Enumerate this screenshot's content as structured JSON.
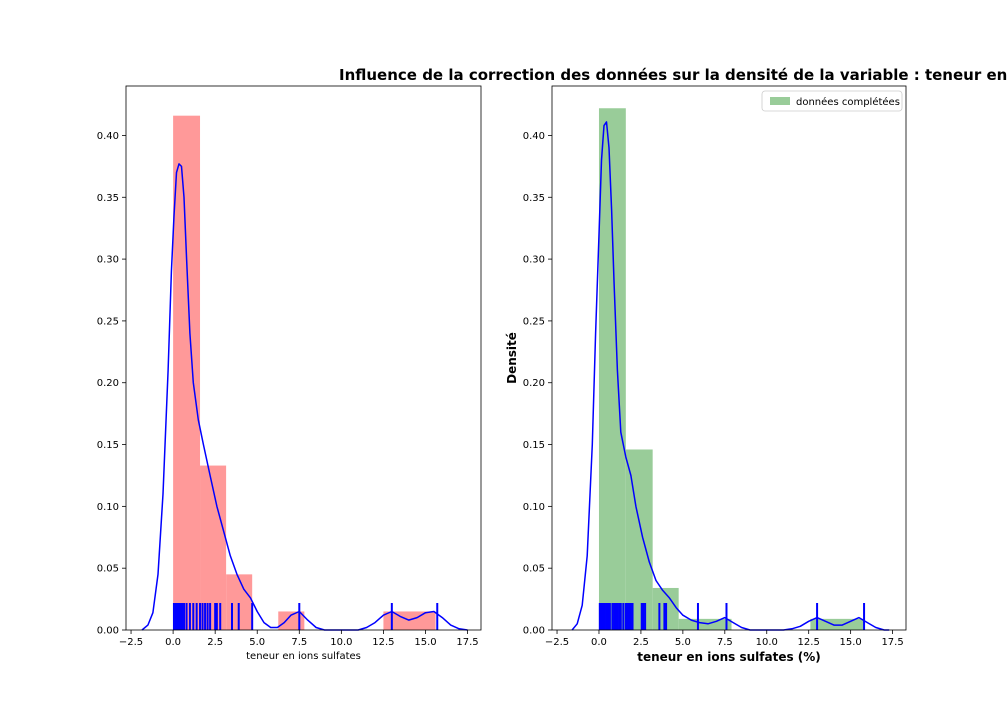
{
  "suptitle": "Influence de la correction des données sur la densité de la variable : teneur en",
  "chart_data": [
    {
      "type": "bar",
      "title": "",
      "xlabel": "teneur en ions sulfates",
      "ylabel": "",
      "xlim": [
        -2.8,
        18.3
      ],
      "ylim": [
        0,
        0.44
      ],
      "xticks": [
        -2.5,
        0.0,
        2.5,
        5.0,
        7.5,
        10.0,
        12.5,
        15.0,
        17.5
      ],
      "xtick_labels": [
        "−2.5",
        "0.0",
        "2.5",
        "5.0",
        "7.5",
        "10.0",
        "12.5",
        "15.0",
        "17.5"
      ],
      "yticks": [
        0.0,
        0.05,
        0.1,
        0.15,
        0.2,
        0.25,
        0.3,
        0.35,
        0.4
      ],
      "ytick_labels": [
        "0.00",
        "0.05",
        "0.10",
        "0.15",
        "0.20",
        "0.25",
        "0.30",
        "0.35",
        "0.40"
      ],
      "bar_color": "#ff9999",
      "bins": [
        {
          "x0": 0.0,
          "x1": 1.6,
          "value": 0.416
        },
        {
          "x0": 1.6,
          "x1": 3.15,
          "value": 0.133
        },
        {
          "x0": 3.15,
          "x1": 4.7,
          "value": 0.045
        },
        {
          "x0": 6.25,
          "x1": 7.8,
          "value": 0.015
        },
        {
          "x0": 12.5,
          "x1": 15.6,
          "value": 0.015
        }
      ],
      "kde_color": "#0000ff",
      "kde": {
        "x": [
          -1.85,
          -1.5,
          -1.2,
          -0.9,
          -0.6,
          -0.3,
          -0.1,
          0.05,
          0.2,
          0.35,
          0.5,
          0.65,
          0.8,
          1.0,
          1.2,
          1.5,
          1.8,
          2.2,
          2.6,
          3.0,
          3.4,
          3.8,
          4.2,
          4.6,
          5.0,
          5.4,
          5.8,
          6.2,
          6.6,
          7.0,
          7.5,
          8.0,
          8.5,
          9.0,
          9.5,
          10.0,
          10.5,
          11.0,
          11.5,
          12.0,
          12.5,
          13.0,
          13.5,
          14.0,
          14.5,
          15.0,
          15.5,
          16.0,
          16.5,
          17.0,
          17.5
        ],
        "y": [
          0.0,
          0.004,
          0.014,
          0.045,
          0.11,
          0.21,
          0.29,
          0.335,
          0.37,
          0.377,
          0.375,
          0.35,
          0.3,
          0.24,
          0.2,
          0.17,
          0.15,
          0.125,
          0.1,
          0.08,
          0.06,
          0.045,
          0.033,
          0.026,
          0.015,
          0.006,
          0.002,
          0.002,
          0.006,
          0.012,
          0.015,
          0.008,
          0.002,
          0.0,
          0.0,
          0.0,
          0.0,
          0.0,
          0.002,
          0.006,
          0.012,
          0.015,
          0.011,
          0.008,
          0.01,
          0.014,
          0.015,
          0.01,
          0.004,
          0.001,
          0.0
        ]
      },
      "rug_color": "#0000ff",
      "rug": [
        0.05,
        0.15,
        0.25,
        0.35,
        0.45,
        0.55,
        0.65,
        0.8,
        1.0,
        1.2,
        1.4,
        1.6,
        1.75,
        1.9,
        2.05,
        2.2,
        2.5,
        2.6,
        2.8,
        3.5,
        3.9,
        4.7,
        7.5,
        13.0,
        15.7
      ]
    },
    {
      "type": "bar",
      "title": "",
      "xlabel": "teneur en ions sulfates (%)",
      "ylabel": "Densité",
      "xlim": [
        -2.8,
        18.3
      ],
      "ylim": [
        0,
        0.44
      ],
      "xticks": [
        -2.5,
        0.0,
        2.5,
        5.0,
        7.5,
        10.0,
        12.5,
        15.0,
        17.5
      ],
      "xtick_labels": [
        "−2.5",
        "0.0",
        "2.5",
        "5.0",
        "7.5",
        "10.0",
        "12.5",
        "15.0",
        "17.5"
      ],
      "yticks": [
        0.0,
        0.05,
        0.1,
        0.15,
        0.2,
        0.25,
        0.3,
        0.35,
        0.4
      ],
      "ytick_labels": [
        "0.00",
        "0.05",
        "0.10",
        "0.15",
        "0.20",
        "0.25",
        "0.30",
        "0.35",
        "0.40"
      ],
      "legend": {
        "label": "données complétées",
        "position": "top-right",
        "color": "#99cc99"
      },
      "bar_color": "#99cc99",
      "bins": [
        {
          "x0": 0.0,
          "x1": 1.6,
          "value": 0.422
        },
        {
          "x0": 1.6,
          "x1": 3.2,
          "value": 0.146
        },
        {
          "x0": 3.2,
          "x1": 4.75,
          "value": 0.034
        },
        {
          "x0": 4.75,
          "x1": 7.9,
          "value": 0.009
        },
        {
          "x0": 12.6,
          "x1": 15.8,
          "value": 0.009
        }
      ],
      "kde_color": "#0000ff",
      "kde": {
        "x": [
          -1.6,
          -1.3,
          -1.0,
          -0.7,
          -0.4,
          -0.2,
          0.0,
          0.15,
          0.3,
          0.45,
          0.6,
          0.75,
          0.9,
          1.1,
          1.3,
          1.6,
          1.9,
          2.2,
          2.6,
          3.0,
          3.4,
          3.8,
          4.2,
          4.6,
          5.0,
          5.5,
          6.0,
          6.5,
          7.0,
          7.5,
          8.0,
          8.5,
          9.0,
          10.0,
          11.0,
          11.5,
          12.0,
          12.5,
          13.0,
          13.5,
          14.0,
          14.5,
          15.0,
          15.5,
          16.0,
          16.5,
          17.0,
          17.3
        ],
        "y": [
          0.0,
          0.005,
          0.02,
          0.06,
          0.15,
          0.24,
          0.32,
          0.38,
          0.408,
          0.411,
          0.39,
          0.34,
          0.28,
          0.21,
          0.16,
          0.14,
          0.125,
          0.1,
          0.075,
          0.055,
          0.04,
          0.032,
          0.026,
          0.018,
          0.012,
          0.008,
          0.006,
          0.005,
          0.007,
          0.01,
          0.006,
          0.002,
          0.0,
          0.0,
          0.0,
          0.001,
          0.003,
          0.007,
          0.01,
          0.007,
          0.004,
          0.004,
          0.007,
          0.01,
          0.006,
          0.002,
          0.0,
          0.0
        ]
      },
      "rug_color": "#0000ff",
      "rug": [
        0.05,
        0.15,
        0.25,
        0.35,
        0.45,
        0.55,
        0.65,
        0.8,
        0.9,
        1.0,
        1.1,
        1.2,
        1.3,
        1.45,
        1.6,
        1.7,
        1.8,
        1.9,
        2.0,
        2.55,
        2.65,
        2.75,
        3.6,
        3.9,
        4.0,
        5.9,
        7.6,
        13.0,
        15.8
      ]
    }
  ]
}
